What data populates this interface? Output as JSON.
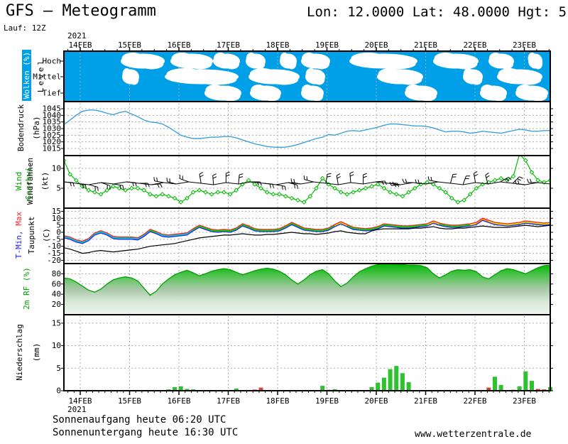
{
  "header": {
    "title": "GFS – Meteogramm",
    "location": "Lon: 12.0000 Lat: 48.0000 Hgt: 5",
    "run": "Lauf: 12Z"
  },
  "footer": {
    "sunrise": "Sonnenaufgang heute 06:20 UTC",
    "sunset": "Sonnenuntergang heute 16:30 UTC",
    "website": "www.wetterzentrale.de"
  },
  "chart_data": {
    "type": "meteogram",
    "x_axis": {
      "year": "2021",
      "date_labels": [
        "14FEB",
        "15FEB",
        "16FEB",
        "17FEB",
        "18FEB",
        "19FEB",
        "20FEB",
        "21FEB",
        "22FEB",
        "23FEB"
      ],
      "step_hours": 3
    },
    "clouds": {
      "label": "Wolken (%)",
      "axis_label": "Level",
      "level_labels": [
        "Hoch",
        "Mittel",
        "Tief"
      ],
      "sky_color": "#00A0E8",
      "cloud_color": "#FFFFFF",
      "blobs": [
        [
          0,
          170,
          232
        ],
        [
          0,
          240,
          300
        ],
        [
          0,
          300,
          338
        ],
        [
          0,
          346,
          374
        ],
        [
          0,
          394,
          418
        ],
        [
          0,
          424,
          465
        ],
        [
          0,
          492,
          588
        ],
        [
          0,
          610,
          674
        ],
        [
          0,
          688,
          724
        ],
        [
          0,
          744,
          764
        ],
        [
          1,
          172,
          196
        ],
        [
          1,
          232,
          336
        ],
        [
          1,
          350,
          422
        ],
        [
          1,
          430,
          458
        ],
        [
          1,
          531,
          596
        ],
        [
          1,
          652,
          680
        ],
        [
          1,
          700,
          764
        ],
        [
          2,
          288,
          340
        ],
        [
          2,
          352,
          396
        ],
        [
          2,
          424,
          456
        ],
        [
          2,
          570,
          616
        ],
        [
          2,
          676,
          714
        ],
        [
          2,
          726,
          772
        ]
      ]
    },
    "pressure": {
      "label": "Bodendruck",
      "unit": "(hPa)",
      "ticks": [
        1045,
        1040,
        1035,
        1030,
        1025,
        1020,
        1015
      ],
      "color": "#3FA0DC",
      "values": [
        1033,
        1036.5,
        1040,
        1043,
        1044,
        1044,
        1043,
        1041.5,
        1040.5,
        1042,
        1043,
        1041,
        1039,
        1036.5,
        1035,
        1034.5,
        1033.5,
        1031,
        1028,
        1025,
        1023.5,
        1022.5,
        1022.5,
        1023,
        1023.5,
        1023.5,
        1024,
        1024,
        1023,
        1021.5,
        1020,
        1018.5,
        1017.5,
        1016.5,
        1016,
        1015.8,
        1016,
        1016.8,
        1018,
        1019.5,
        1021,
        1022.5,
        1023.5,
        1025.5,
        1025,
        1026.5,
        1028,
        1028.5,
        1028,
        1029,
        1030,
        1031,
        1032.5,
        1033.5,
        1033.5,
        1033,
        1032.5,
        1032,
        1032,
        1031.5,
        1030.5,
        1029,
        1027.5,
        1028,
        1028,
        1027.5,
        1026.5,
        1027,
        1028,
        1027.5,
        1027,
        1026.5,
        1027.5,
        1028.5,
        1029.5,
        1029,
        1028,
        1028,
        1028.5,
        1028.5
      ]
    },
    "wind": {
      "label": "Wind Geschwi.",
      "label2": "Windfahnen",
      "unit": "(kt)",
      "ticks": [
        10,
        5
      ],
      "color": "#00BE00",
      "speed_kt": [
        12,
        8.5,
        7,
        5.5,
        4.5,
        4,
        3.5,
        4.5,
        5.5,
        5,
        4.5,
        5,
        5,
        4.5,
        3.5,
        3,
        3.5,
        3,
        2.5,
        1.5,
        2.5,
        4,
        4.5,
        4,
        3.5,
        4,
        4,
        3.5,
        4.5,
        6,
        7,
        6,
        5,
        4,
        3.5,
        3.5,
        3,
        2.5,
        2,
        1.5,
        3,
        5,
        7.5,
        6,
        5,
        4,
        3.5,
        4,
        4.5,
        5,
        5.5,
        6,
        5,
        4,
        3.5,
        3,
        4,
        5,
        6,
        6.5,
        6,
        5,
        4,
        2.5,
        1.5,
        2,
        3.5,
        5,
        6,
        6.5,
        7,
        7.5,
        7,
        8,
        13.5,
        12,
        9,
        7,
        6.5,
        7
      ],
      "barb_dirs_deg": [
        95,
        100,
        105,
        110,
        100,
        95,
        90,
        85,
        280,
        285,
        290,
        350,
        355,
        0,
        5,
        90,
        95,
        100,
        105,
        280,
        285,
        10,
        350,
        355,
        0,
        85,
        90,
        265,
        270,
        275,
        280,
        15,
        20,
        350,
        345,
        60,
        45,
        275,
        270,
        90
      ]
    },
    "temperature": {
      "label_min": "T-Min,",
      "label_max": "Max",
      "label2": "Taupunkt",
      "unit": "(C)",
      "ticks": [
        15,
        10,
        5,
        0,
        -5,
        -10,
        -15,
        -20
      ],
      "min_color": "#2222FF",
      "max_color": "#FF2020",
      "dew_color": "#000000",
      "band_colors": {
        "cold": "#00D2C8",
        "mild": "#00DC00",
        "warm": "#D8E000",
        "hot": "#FFA000"
      },
      "spread_c": 1.6,
      "temp_c": [
        -4,
        -5,
        -7,
        -8,
        -6,
        -2,
        -0.5,
        -2,
        -4.5,
        -5,
        -5,
        -5,
        -5.5,
        -3,
        0.5,
        -1,
        -3,
        -3.5,
        -3,
        -2.5,
        -2,
        1,
        3.5,
        2,
        0.5,
        0,
        0.5,
        0,
        1.5,
        4.5,
        3,
        1,
        0.5,
        0.5,
        0.5,
        1,
        3,
        5.5,
        3.5,
        1.5,
        1,
        0.5,
        0.5,
        1.5,
        4,
        6,
        4,
        2,
        1.5,
        1,
        1.5,
        2.5,
        4.5,
        4,
        3.5,
        3,
        3,
        3.5,
        4,
        4.5,
        6.5,
        5,
        4,
        3.5,
        3.5,
        4,
        4.5,
        5.5,
        8.5,
        7,
        5.5,
        5,
        4.5,
        5,
        5.5,
        6.5,
        6,
        5.5,
        5,
        5.5
      ],
      "dewpoint_c": [
        -11,
        -12,
        -13.5,
        -15,
        -14.5,
        -13.5,
        -13,
        -13.5,
        -14,
        -13.5,
        -13,
        -12.5,
        -12,
        -11,
        -10,
        -9.5,
        -9,
        -8.5,
        -8,
        -7,
        -6,
        -5,
        -4,
        -3.5,
        -3,
        -2.5,
        -2,
        -2,
        -1.5,
        -1,
        -1.5,
        -2,
        -2,
        -1.5,
        -1.5,
        -1,
        -0.5,
        0,
        -0.5,
        -1,
        -1,
        -1.5,
        -1,
        -0.5,
        0.5,
        1,
        0,
        -0.5,
        -1,
        -1,
        1,
        2,
        2.5,
        2.5,
        2.5,
        2.5,
        2.5,
        3,
        3,
        3.5,
        4,
        3,
        2.5,
        2.5,
        3,
        3,
        3.5,
        4,
        4.5,
        4,
        3.5,
        3.5,
        3.5,
        4,
        4.5,
        5,
        4.5,
        4,
        4.5,
        5
      ]
    },
    "humidity": {
      "label": "2m RF (%)",
      "ticks": [
        80,
        60,
        40,
        20
      ],
      "edge_color": "#00A000",
      "gradient": [
        "#00B400",
        "#55C455",
        "#A8C8A8",
        "#D8E8D8",
        "#EEF6EE"
      ],
      "values_pct": [
        72,
        70,
        64,
        56,
        48,
        44,
        50,
        60,
        68,
        72,
        74,
        72,
        66,
        52,
        38,
        46,
        60,
        70,
        78,
        83,
        87,
        82,
        76,
        80,
        85,
        88,
        90,
        88,
        83,
        78,
        82,
        86,
        89,
        91,
        89,
        85,
        78,
        68,
        60,
        68,
        78,
        85,
        88,
        80,
        66,
        55,
        62,
        74,
        84,
        90,
        95,
        98,
        99,
        99,
        98,
        98,
        97,
        97,
        96,
        92,
        80,
        72,
        78,
        85,
        88,
        87,
        88,
        84,
        74,
        70,
        78,
        86,
        90,
        88,
        84,
        80,
        86,
        92,
        96,
        97
      ]
    },
    "precipitation": {
      "label": "Niederschlag",
      "unit": "(mm)",
      "ticks": [
        15,
        10,
        5,
        0
      ],
      "colors": {
        "g": "#2EC22E",
        "r": "#E04030"
      },
      "bars": [
        [
          17,
          0.3,
          "g"
        ],
        [
          18,
          0.8,
          "g"
        ],
        [
          19,
          1.0,
          "g"
        ],
        [
          20,
          0.4,
          "g"
        ],
        [
          21,
          0.3,
          "g"
        ],
        [
          28,
          0.5,
          "g"
        ],
        [
          31,
          0.25,
          "r"
        ],
        [
          32,
          0.7,
          "r"
        ],
        [
          33,
          0.15,
          "r"
        ],
        [
          42,
          1.1,
          "g"
        ],
        [
          43,
          0.2,
          "r"
        ],
        [
          44,
          0.35,
          "g"
        ],
        [
          50,
          0.8,
          "g"
        ],
        [
          51,
          1.8,
          "g"
        ],
        [
          52,
          2.9,
          "g"
        ],
        [
          53,
          4.8,
          "g"
        ],
        [
          54,
          5.5,
          "g"
        ],
        [
          55,
          3.9,
          "g"
        ],
        [
          56,
          1.9,
          "g"
        ],
        [
          59,
          0.15,
          "g"
        ],
        [
          69,
          0.7,
          "r"
        ],
        [
          70,
          3.1,
          "g"
        ],
        [
          71,
          1.3,
          "g"
        ],
        [
          72,
          0.15,
          "g"
        ],
        [
          73,
          0.2,
          "r"
        ],
        [
          74,
          1.0,
          "g"
        ],
        [
          75,
          4.3,
          "g"
        ],
        [
          76,
          2.2,
          "g"
        ],
        [
          77,
          0.4,
          "r"
        ],
        [
          78,
          0.3,
          "r"
        ],
        [
          79,
          0.8,
          "g"
        ]
      ]
    }
  }
}
